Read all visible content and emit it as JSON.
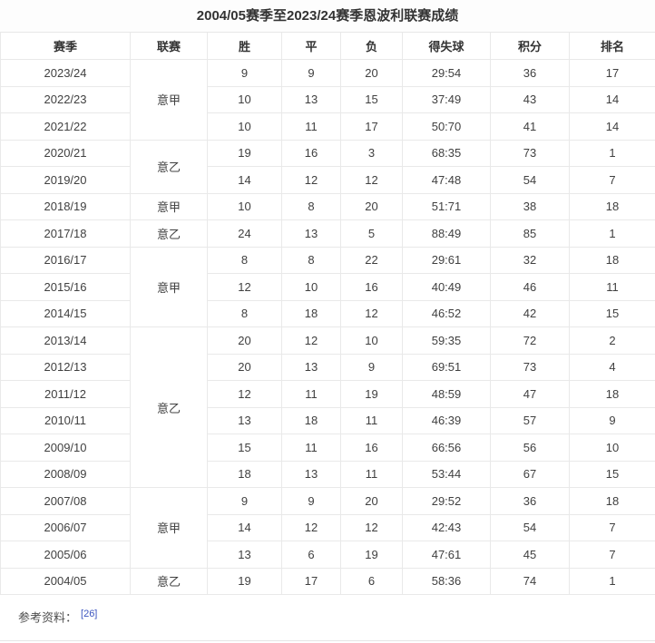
{
  "title": "2004/05赛季至2023/24赛季恩波利联赛成绩",
  "table": {
    "headers": [
      "赛季",
      "联赛",
      "胜",
      "平",
      "负",
      "得失球",
      "积分",
      "排名"
    ],
    "rows": [
      {
        "season": "2023/24",
        "league": {
          "label": "意甲",
          "rowspan": 3
        },
        "w": "9",
        "d": "9",
        "l": "20",
        "goals": "29:54",
        "points": "36",
        "rank": "17"
      },
      {
        "season": "2022/23",
        "w": "10",
        "d": "13",
        "l": "15",
        "goals": "37:49",
        "points": "43",
        "rank": "14"
      },
      {
        "season": "2021/22",
        "w": "10",
        "d": "11",
        "l": "17",
        "goals": "50:70",
        "points": "41",
        "rank": "14"
      },
      {
        "season": "2020/21",
        "league": {
          "label": "意乙",
          "rowspan": 2
        },
        "w": "19",
        "d": "16",
        "l": "3",
        "goals": "68:35",
        "points": "73",
        "rank": "1"
      },
      {
        "season": "2019/20",
        "w": "14",
        "d": "12",
        "l": "12",
        "goals": "47:48",
        "points": "54",
        "rank": "7"
      },
      {
        "season": "2018/19",
        "league": {
          "label": "意甲",
          "rowspan": 1
        },
        "w": "10",
        "d": "8",
        "l": "20",
        "goals": "51:71",
        "points": "38",
        "rank": "18"
      },
      {
        "season": "2017/18",
        "league": {
          "label": "意乙",
          "rowspan": 1
        },
        "w": "24",
        "d": "13",
        "l": "5",
        "goals": "88:49",
        "points": "85",
        "rank": "1"
      },
      {
        "season": "2016/17",
        "league": {
          "label": "意甲",
          "rowspan": 3
        },
        "w": "8",
        "d": "8",
        "l": "22",
        "goals": "29:61",
        "points": "32",
        "rank": "18"
      },
      {
        "season": "2015/16",
        "w": "12",
        "d": "10",
        "l": "16",
        "goals": "40:49",
        "points": "46",
        "rank": "11"
      },
      {
        "season": "2014/15",
        "w": "8",
        "d": "18",
        "l": "12",
        "goals": "46:52",
        "points": "42",
        "rank": "15"
      },
      {
        "season": "2013/14",
        "league": {
          "label": "意乙",
          "rowspan": 6
        },
        "w": "20",
        "d": "12",
        "l": "10",
        "goals": "59:35",
        "points": "72",
        "rank": "2"
      },
      {
        "season": "2012/13",
        "w": "20",
        "d": "13",
        "l": "9",
        "goals": "69:51",
        "points": "73",
        "rank": "4"
      },
      {
        "season": "2011/12",
        "w": "12",
        "d": "11",
        "l": "19",
        "goals": "48:59",
        "points": "47",
        "rank": "18"
      },
      {
        "season": "2010/11",
        "w": "13",
        "d": "18",
        "l": "11",
        "goals": "46:39",
        "points": "57",
        "rank": "9"
      },
      {
        "season": "2009/10",
        "w": "15",
        "d": "11",
        "l": "16",
        "goals": "66:56",
        "points": "56",
        "rank": "10"
      },
      {
        "season": "2008/09",
        "w": "18",
        "d": "13",
        "l": "11",
        "goals": "53:44",
        "points": "67",
        "rank": "15"
      },
      {
        "season": "2007/08",
        "league": {
          "label": "意甲",
          "rowspan": 3
        },
        "w": "9",
        "d": "9",
        "l": "20",
        "goals": "29:52",
        "points": "36",
        "rank": "18"
      },
      {
        "season": "2006/07",
        "w": "14",
        "d": "12",
        "l": "12",
        "goals": "42:43",
        "points": "54",
        "rank": "7"
      },
      {
        "season": "2005/06",
        "w": "13",
        "d": "6",
        "l": "19",
        "goals": "47:61",
        "points": "45",
        "rank": "7"
      },
      {
        "season": "2004/05",
        "league": {
          "label": "意乙",
          "rowspan": 1
        },
        "w": "19",
        "d": "17",
        "l": "6",
        "goals": "58:36",
        "points": "74",
        "rank": "1"
      }
    ]
  },
  "footer": {
    "label": "参考资料：",
    "ref": "[26]"
  },
  "colors": {
    "link_blue": "#3b54bf",
    "border_gray": "#e9e9e9"
  }
}
